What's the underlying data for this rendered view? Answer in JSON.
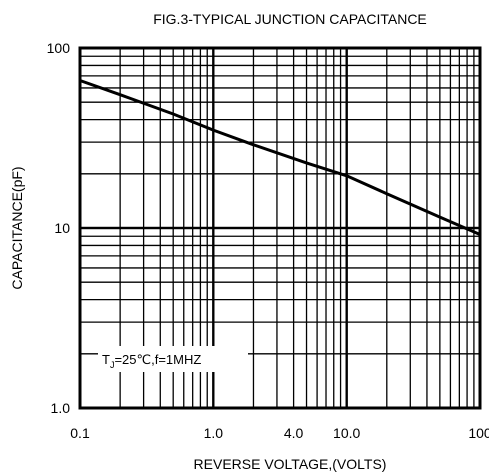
{
  "chart_data": {
    "type": "line",
    "title": "FIG.3-TYPICAL JUNCTION CAPACITANCE",
    "xlabel": "REVERSE VOLTAGE,(VOLTS)",
    "ylabel": "CAPACITANCE(pF)",
    "xscale": "log",
    "yscale": "log",
    "xlim": [
      0.1,
      100
    ],
    "ylim": [
      1.0,
      100
    ],
    "x_tick_labels": [
      {
        "value": 0.1,
        "label": "0.1"
      },
      {
        "value": 1.0,
        "label": "1.0"
      },
      {
        "value": 4.0,
        "label": "4.0"
      },
      {
        "value": 10.0,
        "label": "10.0"
      },
      {
        "value": 100,
        "label": "100"
      }
    ],
    "y_tick_labels": [
      {
        "value": 1.0,
        "label": "1.0"
      },
      {
        "value": 10,
        "label": "10"
      },
      {
        "value": 100,
        "label": "100"
      }
    ],
    "grid": true,
    "annotation": {
      "base": "T",
      "subscript": "J",
      "rest": "=25℃,f=1MHZ"
    },
    "series": [
      {
        "x": [
          0.1,
          0.2,
          0.5,
          1.0,
          2.0,
          5.0,
          10.0,
          20.0,
          50.0,
          100
        ],
        "y": [
          66,
          55,
          43,
          35,
          29,
          23,
          19.5,
          15.5,
          11.5,
          9.2
        ]
      }
    ]
  }
}
